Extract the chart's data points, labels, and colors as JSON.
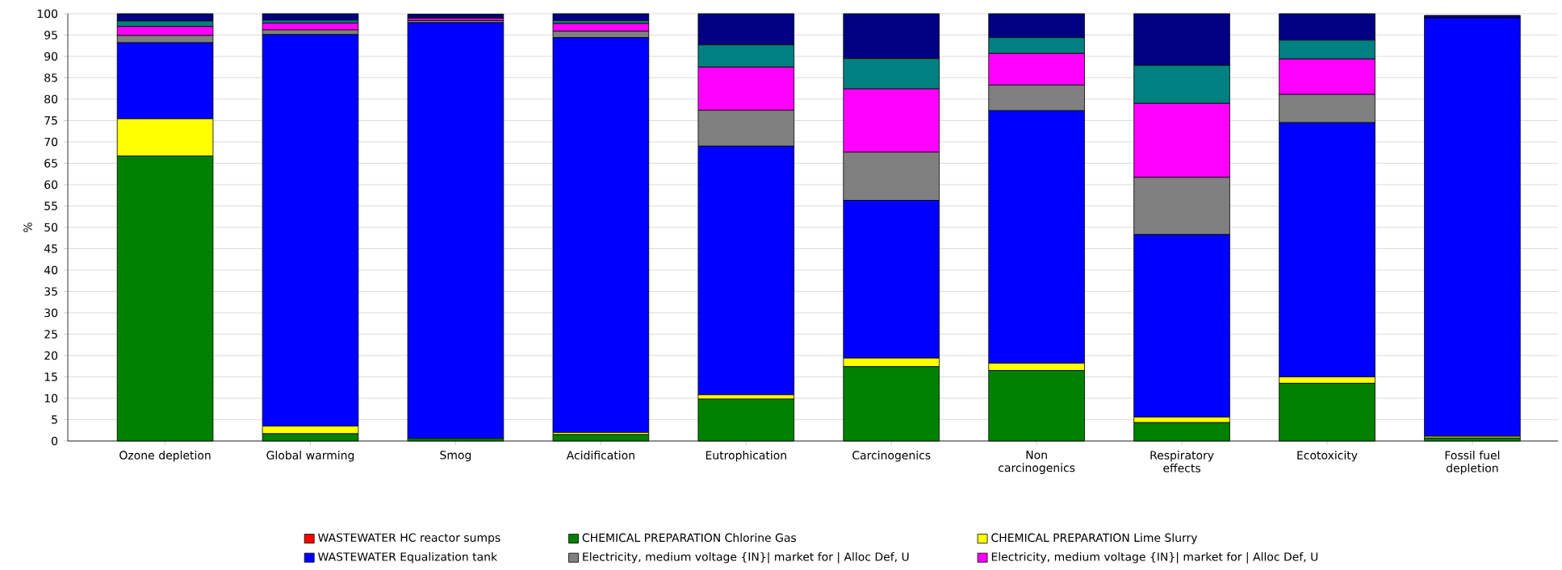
{
  "chart_data": {
    "type": "bar",
    "stacked": true,
    "ylabel": "%",
    "categories": [
      "Ozone depletion",
      "Global warming",
      "Smog",
      "Acidification",
      "Eutrophication",
      "Carcinogenics",
      "Non carcinogenics",
      "Respiratory effects",
      "Ecotoxicity",
      "Fossil fuel depletion"
    ],
    "series": [
      {
        "name": "WASTEWATER HC reactor sumps",
        "color": "#ff0000",
        "values": [
          0,
          0,
          0,
          0,
          0,
          0,
          0,
          0,
          0,
          0
        ]
      },
      {
        "name": "CHEMICAL PREPARATION Chlorine Gas",
        "color": "#008000",
        "values": [
          66.7,
          1.7,
          0.6,
          1.5,
          9.8,
          17.4,
          16.5,
          4.3,
          13.5,
          0.7
        ]
      },
      {
        "name": "CHEMICAL PREPARATION Lime Slurry",
        "color": "#ffff00",
        "values": [
          8.7,
          1.8,
          null,
          0.5,
          1.0,
          2.0,
          1.7,
          1.3,
          1.5,
          0.4
        ]
      },
      {
        "name": "WASTEWATER Equalization tank",
        "color": "#0000ff",
        "values": [
          17.8,
          91.6,
          97.3,
          92.4,
          58.2,
          36.9,
          59.1,
          42.7,
          59.5,
          97.9
        ]
      },
      {
        "name": "Electricity, medium voltage {IN}| market for | Alloc Def, U",
        "color": "#808080",
        "values": [
          1.7,
          1.1,
          0.5,
          1.5,
          8.4,
          11.3,
          6.0,
          13.4,
          6.6,
          null
        ]
      },
      {
        "name": "Electricity, medium voltage {IN}| market for | Alloc Def, U",
        "color": "#ff00ff",
        "values": [
          2.1,
          1.6,
          0.5,
          1.8,
          10.1,
          14.8,
          7.4,
          17.3,
          8.3,
          null
        ]
      },
      {
        "color": "#008080",
        "values": [
          1.3,
          0.7,
          0.2,
          0.7,
          5.2,
          7.1,
          3.7,
          8.9,
          4.4,
          null
        ]
      },
      {
        "color": "#000080",
        "values": [
          1.7,
          1.5,
          0.8,
          1.6,
          7.3,
          10.5,
          5.6,
          12.1,
          6.2,
          0.6
        ]
      }
    ],
    "ylim": [
      0,
      100
    ],
    "yticks": [
      0,
      5,
      10,
      15,
      20,
      25,
      30,
      35,
      40,
      45,
      50,
      55,
      60,
      65,
      70,
      75,
      80,
      85,
      90,
      95,
      100
    ],
    "grid": "y",
    "legend": "bottom"
  }
}
